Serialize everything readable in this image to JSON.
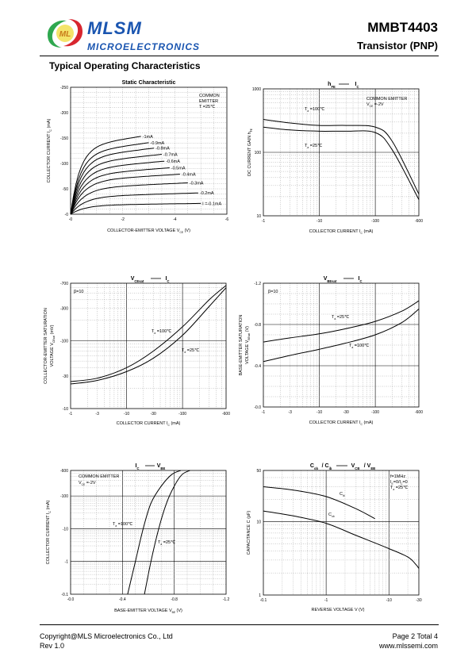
{
  "header": {
    "brand_name": "MLSM",
    "brand_sub": "MICROELECTRONICS",
    "logo_letters": "ML",
    "part_number": "MMBT4403",
    "part_type": "Transistor  (PNP)"
  },
  "section_title": "Typical Operating Characteristics",
  "footer": {
    "copyright": "Copyright@MLS Microelectronics Co., Ltd",
    "rev": "Rev 1.0",
    "page": "Page 2 Total 4",
    "website": "www.mlssemi.com"
  },
  "colors": {
    "brand_blue": "#1a55b0",
    "logo_green": "#2fa84f",
    "logo_red": "#d8262f"
  },
  "chart_data": [
    {
      "type": "line",
      "title": "Static Characteristic",
      "xlabel": "COLLECTOR-EMITTER VOLTAGE   V",
      "xlabel_sub": "CE",
      "xlabel_unit": "(V)",
      "ylabel": "COLLECTOR CURRENT   I",
      "ylabel_sub": "C",
      "ylabel_unit": "(mA)",
      "x_ticks": [
        "-0",
        "-2",
        "-4",
        "-6"
      ],
      "y_ticks": [
        "-0",
        "-50",
        "-100",
        "-150",
        "-200",
        "-250"
      ],
      "annotation": [
        "COMMON",
        "EMITTER",
        "T =25℃"
      ],
      "series": [
        {
          "name": "-1mA",
          "i_sat": -165
        },
        {
          "name": "-0.9mA",
          "i_sat": -150
        },
        {
          "name": "-0.8mA",
          "i_sat": -138
        },
        {
          "name": "-0.7mA",
          "i_sat": -124
        },
        {
          "name": "-0.6mA",
          "i_sat": -110
        },
        {
          "name": "-0.5mA",
          "i_sat": -96
        },
        {
          "name": "-0.4mA",
          "i_sat": -82
        },
        {
          "name": "-0.3mA",
          "i_sat": -64
        },
        {
          "name": "-0.2mA",
          "i_sat": -43
        },
        {
          "name": "I =-0.1mA",
          "i_sat": -22
        }
      ]
    },
    {
      "type": "line",
      "title": "h",
      "title_sub": "FE",
      "title_rhs": "I",
      "title_rhs_sub": "C",
      "xlabel": "COLLECTOR CURRENT    I",
      "xlabel_sub": "C",
      "xlabel_unit": "(mA)",
      "ylabel": "DC CURRENT GAIN   h",
      "ylabel_sub": "FE",
      "x_ticks": [
        "-1",
        "-10",
        "-100",
        "-600"
      ],
      "y_ticks": [
        "10",
        "100",
        "1000"
      ],
      "annotation": [
        "COMMON EMITTER",
        "V  =-2V"
      ],
      "series": [
        {
          "name": "T =100℃",
          "x": [
            -1,
            -3,
            -10,
            -30,
            -100,
            -200,
            -600
          ],
          "y": [
            330,
            290,
            265,
            265,
            250,
            150,
            22
          ]
        },
        {
          "name": "T =25℃",
          "x": [
            -1,
            -3,
            -10,
            -30,
            -100,
            -200,
            -600
          ],
          "y": [
            250,
            225,
            215,
            215,
            205,
            110,
            18
          ]
        }
      ]
    },
    {
      "type": "line",
      "title": "V",
      "title_sub": "CEsat",
      "title_rhs": "I",
      "title_rhs_sub": "C",
      "xlabel": "COLLECTOR CURRENT  I",
      "xlabel_sub": "C",
      "xlabel_unit": "(mA)",
      "ylabel": "COLLECTOR-EMITTER SATURATION",
      "ylabel2": "VOLTAGE   V",
      "ylabel2_sub": "CEsat",
      "ylabel2_unit": "(mV)",
      "x_ticks": [
        "-1",
        "-3",
        "-10",
        "-30",
        "-100",
        "-600"
      ],
      "y_ticks": [
        "-10",
        "-30",
        "-100",
        "-300",
        "-700"
      ],
      "annotation": [
        "β=10"
      ],
      "series": [
        {
          "name": "T =100℃",
          "x": [
            -1,
            -3,
            -10,
            -30,
            -100,
            -300,
            -600
          ],
          "y": [
            -25,
            -28,
            -40,
            -70,
            -160,
            -400,
            -650
          ]
        },
        {
          "name": "T =25℃",
          "x": [
            -1,
            -3,
            -10,
            -30,
            -100,
            -300,
            -600
          ],
          "y": [
            -23,
            -26,
            -35,
            -55,
            -120,
            -320,
            -600
          ]
        }
      ]
    },
    {
      "type": "line",
      "title": "V",
      "title_sub": "BEsat",
      "title_rhs": "I",
      "title_rhs_sub": "C",
      "xlabel": "COLLECTOR CURRENT  I",
      "xlabel_sub": "C",
      "xlabel_unit": "(mA)",
      "ylabel": "BASE-EMITTER SATURATION",
      "ylabel2": "VOLTAGE   V",
      "ylabel2_sub": "BEsat",
      "ylabel2_unit": "(V)",
      "x_ticks": [
        "-1",
        "-3",
        "-10",
        "-30",
        "-100",
        "-600"
      ],
      "y_ticks": [
        "-0.0",
        "-0.4",
        "-0.8",
        "-1.2"
      ],
      "annotation": [
        "β=10"
      ],
      "series": [
        {
          "name": "T =25℃",
          "x": [
            -1,
            -3,
            -10,
            -30,
            -100,
            -300,
            -600
          ],
          "y": [
            -0.63,
            -0.67,
            -0.71,
            -0.76,
            -0.83,
            -0.93,
            -1.03
          ]
        },
        {
          "name": "T =100℃",
          "x": [
            -1,
            -3,
            -10,
            -30,
            -100,
            -300,
            -600
          ],
          "y": [
            -0.44,
            -0.5,
            -0.56,
            -0.62,
            -0.7,
            -0.82,
            -0.95
          ]
        }
      ]
    },
    {
      "type": "line",
      "title": "I",
      "title_sub": "C",
      "title_rhs": "V",
      "title_rhs_sub": "BE",
      "xlabel": "BASE-EMITTER VOLTAGE  V",
      "xlabel_sub": "BE",
      "xlabel_unit": "(V)",
      "ylabel": "COLLECTOR CURRENT   I",
      "ylabel_sub": "C",
      "ylabel_unit": "(mA)",
      "x_ticks": [
        "-0.0",
        "-0.4",
        "-0.8",
        "-1.2"
      ],
      "y_ticks": [
        "-0.1",
        "-1",
        "-10",
        "-100",
        "-600"
      ],
      "annotation": [
        "COMMON EMITTER",
        "V  =-2V"
      ],
      "series": [
        {
          "name": "T =100℃",
          "x": [
            -0.44,
            -0.5,
            -0.56,
            -0.62,
            -0.7,
            -0.78,
            -0.85
          ],
          "y": [
            -0.1,
            -1,
            -10,
            -60,
            -200,
            -450,
            -600
          ]
        },
        {
          "name": "T =25℃",
          "x": [
            -0.57,
            -0.62,
            -0.68,
            -0.74,
            -0.8,
            -0.86,
            -0.92
          ],
          "y": [
            -0.1,
            -1,
            -10,
            -60,
            -200,
            -450,
            -600
          ]
        }
      ]
    },
    {
      "type": "line",
      "title": "C",
      "title_sub": "ob",
      "title_mid": "/ C",
      "title_mid_sub": "ib",
      "title_rhs": "V",
      "title_rhs_sub": "CB",
      "title_rhs2": "/ V",
      "title_rhs2_sub": "EB",
      "xlabel": "REVERSE VOLTAGE    V",
      "xlabel_unit": "(V)",
      "ylabel": "CAPACITANCE   C",
      "ylabel_unit": "(pF)",
      "x_ticks": [
        "-0.1",
        "-1",
        "-10",
        "-30"
      ],
      "y_ticks": [
        "1",
        "10",
        "50"
      ],
      "annotation": [
        "f=1MHz",
        "I =0/I =0",
        "T =25℃"
      ],
      "series": [
        {
          "name": "C",
          "name_sub": "ib",
          "x": [
            -0.1,
            -0.3,
            -1,
            -3,
            -6
          ],
          "y": [
            30,
            27,
            22,
            15,
            11
          ]
        },
        {
          "name": "C",
          "name_sub": "ob",
          "x": [
            -0.1,
            -0.3,
            -1,
            -3,
            -10,
            -20,
            -27,
            -30
          ],
          "y": [
            14,
            12,
            9.5,
            6.5,
            4.3,
            3.3,
            2.6,
            2.3
          ]
        }
      ]
    }
  ]
}
